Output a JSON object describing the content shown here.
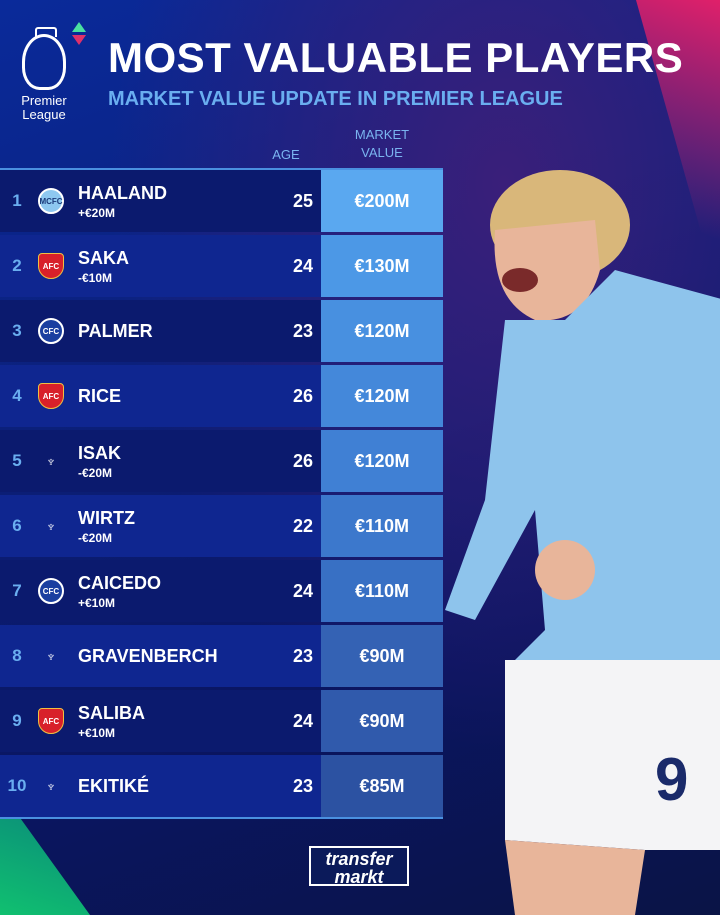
{
  "header": {
    "title": "MOST VALUABLE PLAYERS",
    "subtitle": "MARKET VALUE UPDATE IN PREMIER LEAGUE",
    "logo_text_1": "Premier",
    "logo_text_2": "League"
  },
  "columns": {
    "age": "AGE",
    "value_1": "MARKET",
    "value_2": "VALUE"
  },
  "colors": {
    "accent": "#6aaef0",
    "up": "#4ae0a0",
    "down": "#e0306a"
  },
  "rows": [
    {
      "rank": "1",
      "club": "manchester-city",
      "name": "HAALAND",
      "change": "+€20M",
      "age": "25",
      "value": "€200M"
    },
    {
      "rank": "2",
      "club": "arsenal",
      "name": "SAKA",
      "change": "-€10M",
      "age": "24",
      "value": "€130M"
    },
    {
      "rank": "3",
      "club": "chelsea",
      "name": "PALMER",
      "change": "",
      "age": "23",
      "value": "€120M"
    },
    {
      "rank": "4",
      "club": "arsenal",
      "name": "RICE",
      "change": "",
      "age": "26",
      "value": "€120M"
    },
    {
      "rank": "5",
      "club": "liverpool",
      "name": "ISAK",
      "change": "-€20M",
      "age": "26",
      "value": "€120M"
    },
    {
      "rank": "6",
      "club": "liverpool",
      "name": "WIRTZ",
      "change": "-€20M",
      "age": "22",
      "value": "€110M"
    },
    {
      "rank": "7",
      "club": "chelsea",
      "name": "CAICEDO",
      "change": "+€10M",
      "age": "24",
      "value": "€110M"
    },
    {
      "rank": "8",
      "club": "liverpool",
      "name": "GRAVENBERCH",
      "change": "",
      "age": "23",
      "value": "€90M"
    },
    {
      "rank": "9",
      "club": "arsenal",
      "name": "SALIBA",
      "change": "+€10M",
      "age": "24",
      "value": "€90M"
    },
    {
      "rank": "10",
      "club": "liverpool",
      "name": "EKITIKÉ",
      "change": "",
      "age": "23",
      "value": "€85M"
    }
  ],
  "footer": {
    "brand_1": "transfer",
    "brand_2": "markt"
  }
}
